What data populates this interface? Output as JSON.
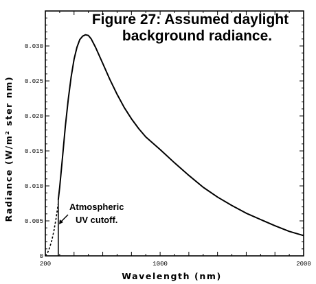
{
  "chart_data": {
    "type": "line",
    "title": [
      "Figure 27: Assumed daylight",
      "background radiance."
    ],
    "xlabel": "Wavelength (nm)",
    "ylabel": "Radiance (W/m² ster nm)",
    "xlim": [
      200,
      2000
    ],
    "ylim": [
      0,
      0.035
    ],
    "x_ticks": [
      {
        "value": 200,
        "label": "200"
      },
      {
        "value": 1000,
        "label": "1000"
      },
      {
        "value": 2000,
        "label": "2000"
      }
    ],
    "y_ticks": [
      {
        "value": 0,
        "label": "0"
      },
      {
        "value": 0.005,
        "label": "0.005"
      },
      {
        "value": 0.01,
        "label": "0.010"
      },
      {
        "value": 0.015,
        "label": "0.015"
      },
      {
        "value": 0.02,
        "label": "0.020"
      },
      {
        "value": 0.025,
        "label": "0.025"
      },
      {
        "value": 0.03,
        "label": "0.030"
      }
    ],
    "cutoff": {
      "x": 290,
      "label": [
        "Atmospheric",
        "UV cutoff."
      ]
    },
    "series": [
      {
        "style": "dashed",
        "points": [
          [
            200,
            0
          ],
          [
            215,
            0.0004
          ],
          [
            230,
            0.0012
          ],
          [
            245,
            0.0022
          ],
          [
            260,
            0.0036
          ],
          [
            275,
            0.0054
          ],
          [
            290,
            0.0075
          ]
        ]
      },
      {
        "style": "solid",
        "points": [
          [
            290,
            0.008
          ],
          [
            300,
            0.0098
          ],
          [
            320,
            0.0142
          ],
          [
            340,
            0.0186
          ],
          [
            360,
            0.0224
          ],
          [
            380,
            0.0256
          ],
          [
            400,
            0.0281
          ],
          [
            420,
            0.0298
          ],
          [
            440,
            0.0309
          ],
          [
            460,
            0.0314
          ],
          [
            480,
            0.0316
          ],
          [
            500,
            0.0315
          ],
          [
            520,
            0.031
          ],
          [
            550,
            0.0298
          ],
          [
            600,
            0.0275
          ],
          [
            650,
            0.0252
          ],
          [
            700,
            0.0231
          ],
          [
            750,
            0.0212
          ],
          [
            800,
            0.0196
          ],
          [
            850,
            0.0182
          ],
          [
            900,
            0.017
          ],
          [
            1000,
            0.0152
          ],
          [
            1100,
            0.0133
          ],
          [
            1200,
            0.0115
          ],
          [
            1300,
            0.0098
          ],
          [
            1400,
            0.0084
          ],
          [
            1500,
            0.0072
          ],
          [
            1600,
            0.0061
          ],
          [
            1700,
            0.0052
          ],
          [
            1800,
            0.0043
          ],
          [
            1900,
            0.0035
          ],
          [
            2000,
            0.0029
          ]
        ]
      }
    ],
    "grid": false
  }
}
